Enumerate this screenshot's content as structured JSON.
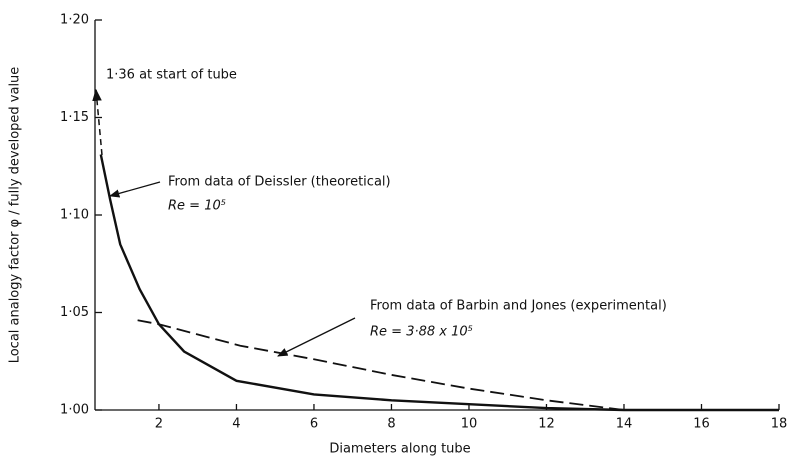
{
  "chart_data": {
    "type": "line",
    "xlabel": "Diameters along tube",
    "ylabel": "Local analogy factor φ / fully developed value",
    "xlim": [
      0.35,
      18
    ],
    "xticks": [
      2,
      4,
      6,
      8,
      10,
      12,
      14,
      16,
      18
    ],
    "ylim": [
      1.0,
      1.2
    ],
    "yticks": [
      {
        "value": 1.0,
        "label": "1·00"
      },
      {
        "value": 1.05,
        "label": "1·05"
      },
      {
        "value": 1.1,
        "label": "1·10"
      },
      {
        "value": 1.15,
        "label": "1·15"
      },
      {
        "value": 1.2,
        "label": "1·20"
      }
    ],
    "series": [
      {
        "name": "From data of Deissler (theoretical)",
        "subtitle": "Re = 10⁵",
        "color": "#111111",
        "dash": false,
        "x": [
          0.5,
          0.74,
          1.0,
          1.5,
          2,
          2.65,
          4,
          6,
          8,
          10,
          12,
          14,
          18
        ],
        "values": [
          1.131,
          1.108,
          1.085,
          1.062,
          1.044,
          1.03,
          1.015,
          1.008,
          1.005,
          1.003,
          1.001,
          1.0,
          1.0
        ]
      },
      {
        "name": "From data of Barbin and Jones (experimental)",
        "subtitle": "Re = 3·88 x 10⁵",
        "color": "#111111",
        "dash": true,
        "x": [
          1.45,
          2,
          4.1,
          6,
          8,
          10,
          12,
          14
        ],
        "values": [
          1.046,
          1.044,
          1.033,
          1.026,
          1.018,
          1.011,
          1.005,
          1.0
        ]
      }
    ],
    "annotation": "1·36 at start of tube"
  }
}
